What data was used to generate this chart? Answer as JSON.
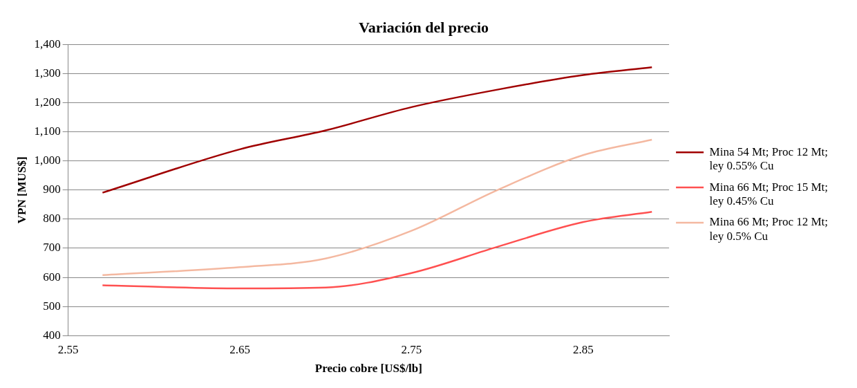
{
  "chart_data": {
    "type": "line",
    "title": "Variación del precio",
    "xlabel": "Precio cobre [US$/lb]",
    "ylabel": "VPN [MUS$]",
    "x": [
      2.57,
      2.65,
      2.7,
      2.75,
      2.8,
      2.85,
      2.89
    ],
    "series": [
      {
        "name": "Mina 54 Mt; Proc 12 Mt; ley 0.55% Cu",
        "color": "#a00000",
        "values": [
          891,
          1040,
          1105,
          1185,
          1245,
          1295,
          1322
        ]
      },
      {
        "name": "Mina 66 Mt; Proc 15 Mt; ley 0.45% Cu",
        "color": "#ff5050",
        "values": [
          573,
          562,
          565,
          615,
          705,
          790,
          825
        ]
      },
      {
        "name": "Mina 66 Mt; Proc 12 Mt; ley 0.5% Cu",
        "color": "#f4b8a0",
        "values": [
          608,
          635,
          665,
          760,
          900,
          1020,
          1073
        ]
      }
    ],
    "xlim": [
      2.55,
      2.9
    ],
    "xticks": [
      2.55,
      2.65,
      2.75,
      2.85
    ],
    "ylim": [
      400,
      1400
    ],
    "yticks": [
      400,
      500,
      600,
      700,
      800,
      900,
      {
        "value": 1000,
        "label": "1,000"
      },
      {
        "value": 1100,
        "label": "1,100"
      },
      {
        "value": 1200,
        "label": "1,200"
      },
      {
        "value": 1300,
        "label": "1,300"
      },
      {
        "value": 1400,
        "label": "1,400"
      }
    ],
    "grid": "y",
    "legend": "right",
    "marker": "none",
    "line_style": "solid"
  }
}
